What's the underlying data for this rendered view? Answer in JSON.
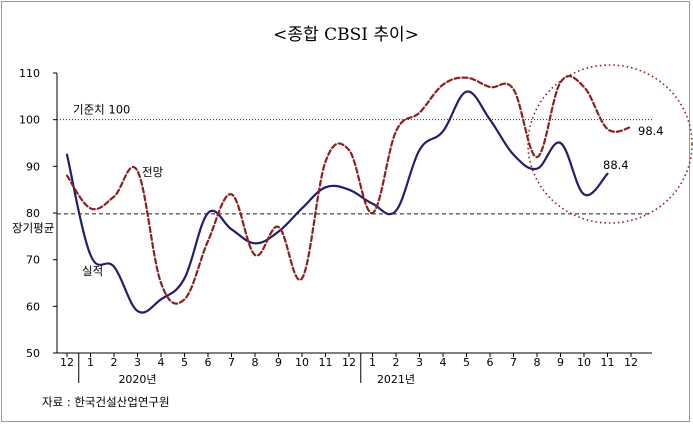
{
  "chart_data": {
    "type": "line",
    "title": "<종합 CBSI 추이>",
    "categories": [
      "12",
      "1",
      "2",
      "3",
      "4",
      "5",
      "6",
      "7",
      "8",
      "9",
      "10",
      "11",
      "12",
      "1",
      "2",
      "3",
      "4",
      "5",
      "6",
      "7",
      "8",
      "9",
      "10",
      "11",
      "12"
    ],
    "year_labels": [
      "2020년",
      "2021년"
    ],
    "ylim": [
      50,
      110
    ],
    "yticks": [
      "50",
      "60",
      "70",
      "80",
      "90",
      "100",
      "110"
    ],
    "series": [
      {
        "name": "실적",
        "color": "#1f1f6e",
        "style": "solid",
        "values": [
          92.5,
          71.0,
          68.5,
          59.0,
          61.5,
          66.0,
          80.0,
          76.5,
          73.5,
          76.0,
          81.0,
          85.5,
          85.0,
          82.0,
          80.5,
          93.5,
          97.5,
          106.0,
          100.0,
          92.5,
          89.5,
          95.0,
          84.0,
          88.4,
          null
        ]
      },
      {
        "name": "전망",
        "color": "#8b2020",
        "style": "dashed",
        "values": [
          88.0,
          81.0,
          83.5,
          89.0,
          65.0,
          61.5,
          74.0,
          84.0,
          71.0,
          77.0,
          66.0,
          91.0,
          93.5,
          80.0,
          97.5,
          101.5,
          107.5,
          109.0,
          107.0,
          106.5,
          92.0,
          108.0,
          107.0,
          98.0,
          98.4
        ]
      }
    ],
    "reference_lines": [
      {
        "label": "기준치 100",
        "value": 100,
        "style": "dotted"
      },
      {
        "label": "장기평균",
        "value": 79.8,
        "style": "dashed"
      }
    ],
    "annotations": {
      "actual_label": "실적",
      "forecast_label": "전망",
      "actual_last": "88.4",
      "forecast_last": "98.4"
    },
    "source": "자료 : 한국건설산업연구원",
    "grid": false
  }
}
